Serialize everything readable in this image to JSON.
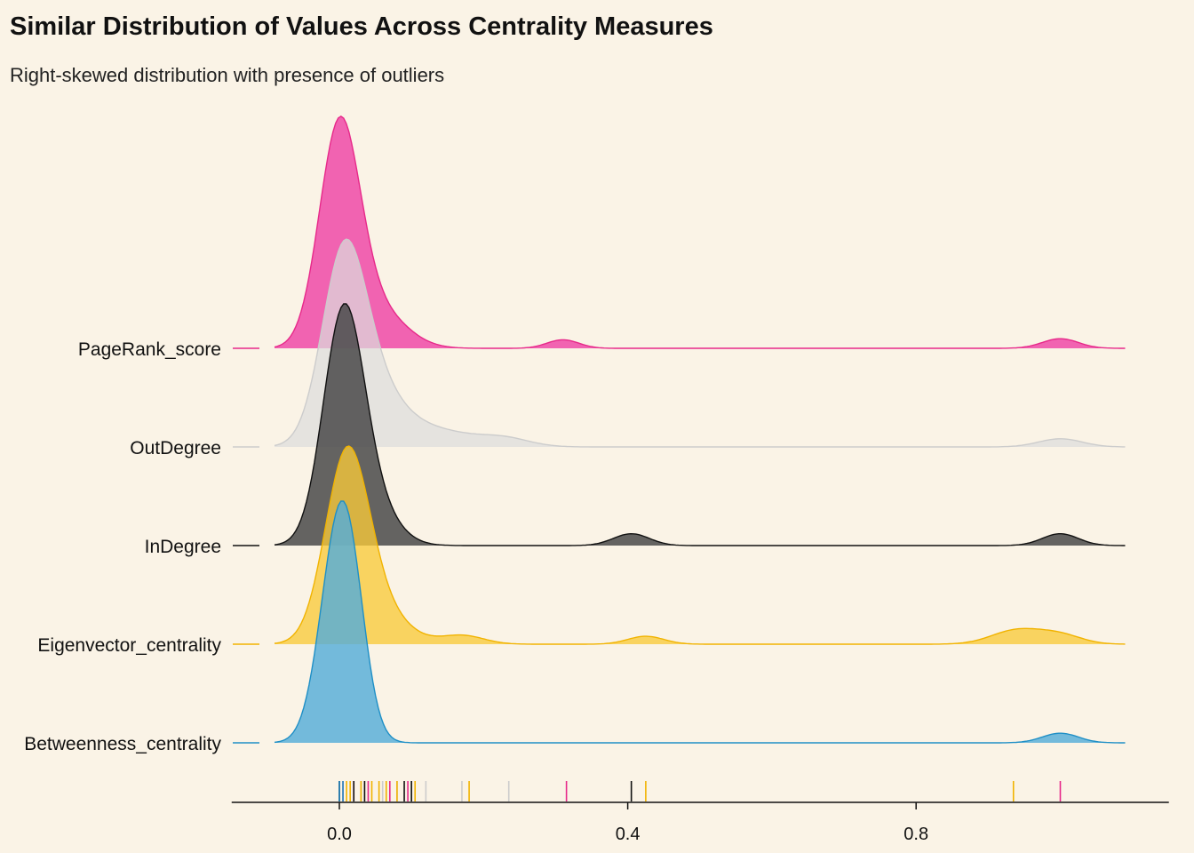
{
  "chart_data": {
    "type": "ridgeline",
    "title": "Similar Distribution of Values Across Centrality Measures",
    "subtitle": "Right-skewed distribution with presence of outliers",
    "x_ticks": [
      0.0,
      0.4,
      0.8
    ],
    "x_tick_labels": [
      "0.0",
      "0.4",
      "0.8"
    ],
    "xlim": [
      -0.15,
      1.15
    ],
    "density_range": [
      -0.09,
      1.09
    ],
    "series": [
      {
        "name": "PageRank_score",
        "color": "#E7298A",
        "fill": "#F05BAE",
        "opacity": 0.95,
        "peak": 0.96,
        "components": [
          [
            0.0,
            0.028,
            1.0
          ],
          [
            0.05,
            0.04,
            0.18
          ],
          [
            0.31,
            0.022,
            0.04
          ],
          [
            1.0,
            0.025,
            0.045
          ]
        ],
        "rug": [
          0.0,
          0.005,
          0.02,
          0.04,
          0.07,
          0.095,
          0.315,
          1.0
        ]
      },
      {
        "name": "OutDegree",
        "color": "#CCCCCC",
        "fill": "#DDDDDD",
        "opacity": 0.72,
        "peak": 0.86,
        "components": [
          [
            0.005,
            0.03,
            1.0
          ],
          [
            0.04,
            0.04,
            0.35
          ],
          [
            0.12,
            0.06,
            0.11
          ],
          [
            0.23,
            0.035,
            0.045
          ],
          [
            1.0,
            0.03,
            0.05
          ]
        ],
        "rug": [
          0.03,
          0.06,
          0.08,
          0.1,
          0.12,
          0.17,
          0.235
        ]
      },
      {
        "name": "InDegree",
        "color": "#111111",
        "fill": "#4A4A4A",
        "opacity": 0.86,
        "peak": 1.0,
        "components": [
          [
            0.005,
            0.028,
            1.0
          ],
          [
            0.04,
            0.035,
            0.2
          ],
          [
            0.405,
            0.025,
            0.055
          ],
          [
            1.0,
            0.025,
            0.055
          ]
        ],
        "rug": [
          0.0,
          0.02,
          0.035,
          0.09,
          0.1,
          0.405
        ]
      },
      {
        "name": "Eigenvector_centrality",
        "color": "#F1B300",
        "fill": "#F8C93A",
        "opacity": 0.78,
        "peak": 0.82,
        "components": [
          [
            0.01,
            0.03,
            1.0
          ],
          [
            0.05,
            0.04,
            0.2
          ],
          [
            0.17,
            0.03,
            0.05
          ],
          [
            0.425,
            0.025,
            0.045
          ],
          [
            0.94,
            0.035,
            0.08
          ],
          [
            1.0,
            0.03,
            0.05
          ]
        ],
        "rug": [
          0.01,
          0.015,
          0.03,
          0.045,
          0.055,
          0.065,
          0.08,
          0.105,
          0.18,
          0.425,
          0.935
        ]
      },
      {
        "name": "Betweenness_centrality",
        "color": "#1F8FC6",
        "fill": "#56ADD8",
        "opacity": 0.82,
        "peak": 1.0,
        "components": [
          [
            0.0,
            0.026,
            1.0
          ],
          [
            0.02,
            0.02,
            0.2
          ],
          [
            1.0,
            0.025,
            0.045
          ]
        ],
        "rug": [
          0.0,
          0.005
        ]
      }
    ]
  }
}
